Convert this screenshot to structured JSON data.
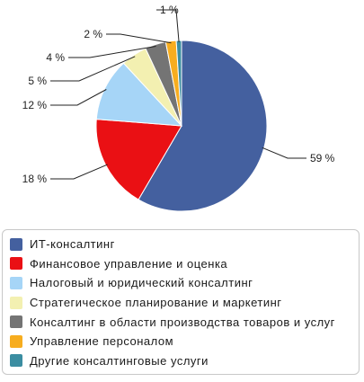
{
  "chart_data": {
    "type": "pie",
    "slices": [
      {
        "name": "ИТ-консалтинг",
        "value": 59,
        "label": "59 %",
        "color": "#44609f"
      },
      {
        "name": "Финансовое управление и оценка",
        "value": 18,
        "label": "18 %",
        "color": "#ea1014"
      },
      {
        "name": "Налоговый и юридический консалтинг",
        "value": 12,
        "label": "12 %",
        "color": "#a6d5f7"
      },
      {
        "name": "Стратегическое планирование и маркетинг",
        "value": 5,
        "label": "5 %",
        "color": "#f3f0b1"
      },
      {
        "name": "Консалтинг в области производства товаров и услуг",
        "value": 4,
        "label": "4 %",
        "color": "#747474"
      },
      {
        "name": "Управление персоналом",
        "value": 2,
        "label": "2 %",
        "color": "#f7ad1f"
      },
      {
        "name": "Другие консалтинговые услуги",
        "value": 1,
        "label": "1 %",
        "color": "#3b8da1"
      }
    ],
    "legend_placement": "bottom"
  }
}
